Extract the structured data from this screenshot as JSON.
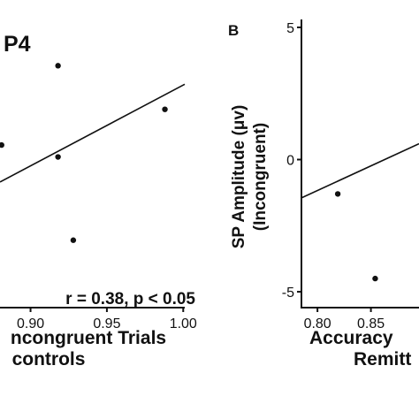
{
  "chart_data": [
    {
      "type": "scatter",
      "panel": "",
      "title": "P4",
      "xlabel": [
        "ncongruent Trials",
        "controls"
      ],
      "ylabel": "",
      "x_ticks": [
        "0.90",
        "0.95",
        "1.00"
      ],
      "xlim": [
        0.88,
        1.001
      ],
      "ylim": [
        -5.6,
        5.3
      ],
      "grid": false,
      "points": [
        {
          "x": 0.881,
          "y": 0.55
        },
        {
          "x": 0.918,
          "y": 3.55
        },
        {
          "x": 0.918,
          "y": 0.1
        },
        {
          "x": 0.928,
          "y": -3.05
        },
        {
          "x": 0.988,
          "y": 1.9
        }
      ],
      "fit_line": {
        "x": [
          0.88,
          1.001
        ],
        "y": [
          -0.85,
          2.85
        ]
      },
      "annotation": "r = 0.38, p < 0.05"
    },
    {
      "type": "scatter",
      "panel": "B",
      "title": "",
      "xlabel": [
        "Accuracy",
        "Remitt"
      ],
      "ylabel": [
        "SP Amplitude (μv)",
        "(Incongruent)"
      ],
      "x_ticks": [
        "0.80",
        "0.85"
      ],
      "y_ticks": [
        "5",
        "0",
        "-5"
      ],
      "xlim": [
        0.785,
        0.895
      ],
      "ylim": [
        -5.6,
        5.3
      ],
      "grid": false,
      "points": [
        {
          "x": 0.819,
          "y": -1.3
        },
        {
          "x": 0.854,
          "y": -4.5
        }
      ],
      "fit_line": {
        "x": [
          0.785,
          0.895
        ],
        "y": [
          -1.45,
          0.6
        ]
      },
      "annotation": ""
    }
  ]
}
